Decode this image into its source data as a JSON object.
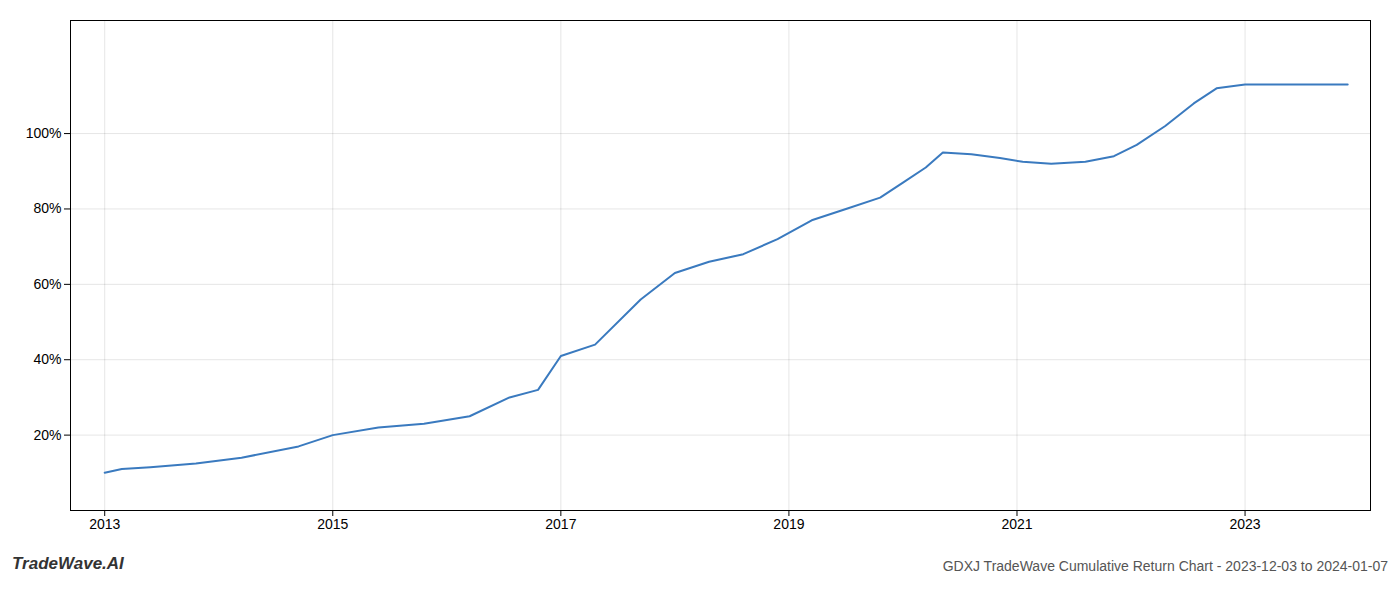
{
  "chart_data": {
    "type": "line",
    "title": "GDXJ TradeWave Cumulative Return Chart - 2023-12-03 to 2024-01-07",
    "annotations": [
      "TradeWave.AI"
    ],
    "x": [
      2013.0,
      2013.15,
      2013.4,
      2013.8,
      2014.2,
      2014.7,
      2015.0,
      2015.4,
      2015.8,
      2016.2,
      2016.55,
      2016.8,
      2017.0,
      2017.3,
      2017.7,
      2018.0,
      2018.3,
      2018.6,
      2018.9,
      2019.2,
      2019.5,
      2019.8,
      2020.0,
      2020.2,
      2020.35,
      2020.6,
      2020.85,
      2021.05,
      2021.3,
      2021.6,
      2021.85,
      2022.05,
      2022.3,
      2022.55,
      2022.75,
      2023.0,
      2023.5,
      2023.9
    ],
    "values": [
      10,
      11,
      11.5,
      12.5,
      14,
      17,
      20,
      22,
      23,
      25,
      30,
      32,
      41,
      44,
      56,
      63,
      66,
      68,
      72,
      77,
      80,
      83,
      87,
      91,
      95,
      94.5,
      93.5,
      92.5,
      92,
      92.5,
      94,
      97,
      102,
      108,
      112,
      113,
      113,
      113
    ],
    "color": "#3a7abf",
    "xlim": [
      2012.7,
      2024.1
    ],
    "ylim": [
      0,
      130
    ],
    "xticks": [
      2013,
      2015,
      2017,
      2019,
      2021,
      2023
    ],
    "yticks": [
      {
        "value": 20,
        "label": "20%"
      },
      {
        "value": 40,
        "label": "40%"
      },
      {
        "value": 60,
        "label": "60%"
      },
      {
        "value": 80,
        "label": "80%"
      },
      {
        "value": 100,
        "label": "100%"
      }
    ],
    "grid": true
  }
}
